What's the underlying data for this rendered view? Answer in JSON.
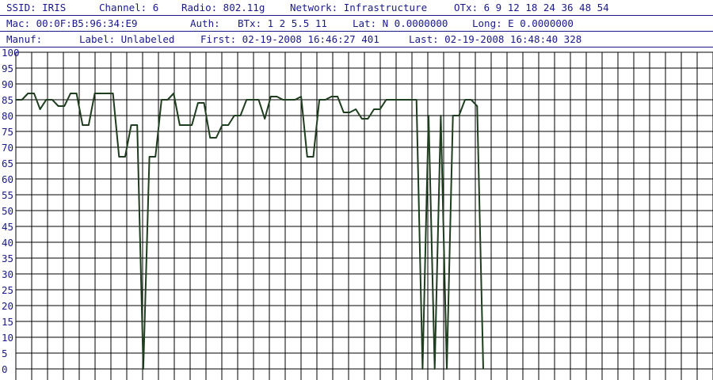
{
  "info": {
    "row1": {
      "ssid": "SSID: IRIS",
      "channel": "Channel: 6",
      "radio": "Radio: 802.11g",
      "network": "Network: Infrastructure",
      "otx": "OTx: 6 9 12 18 24 36 48 54"
    },
    "row2": {
      "mac": "Mac: 00:0F:B5:96:34:E9",
      "auth": "Auth:",
      "btx": "BTx: 1 2 5.5 11",
      "lat": "Lat: N 0.0000000",
      "long": "Long: E 0.0000000"
    },
    "row3": {
      "manuf": "Manuf:",
      "label": "Label: Unlabeled",
      "first": "First: 02-19-2008 16:46:27 401",
      "last": "Last: 02-19-2008 16:48:40 328"
    }
  },
  "colors": {
    "text": "#1a1a8c",
    "grid": "#000000",
    "signal_line": "#1f3d1f",
    "background": "#ffffff"
  },
  "chart_data": {
    "type": "line",
    "title": "",
    "xlabel": "",
    "ylabel": "",
    "ylim": [
      0,
      100
    ],
    "yticks": [
      100,
      95,
      90,
      85,
      80,
      75,
      70,
      65,
      60,
      55,
      50,
      45,
      40,
      35,
      30,
      25,
      20,
      15,
      10,
      5,
      0
    ],
    "grid": true,
    "legend": "none",
    "series": [
      {
        "values": [
          85,
          85,
          87,
          87,
          82,
          85,
          85,
          83,
          83,
          87,
          87,
          77,
          77,
          87,
          87,
          87,
          87,
          67,
          67,
          77,
          77,
          0,
          67,
          67,
          85,
          85,
          87,
          77,
          77,
          77,
          84,
          84,
          73,
          73,
          77,
          77,
          80,
          80,
          85,
          85,
          85,
          79,
          86,
          86,
          85,
          85,
          85,
          86,
          67,
          67,
          85,
          85,
          86,
          86,
          81,
          81,
          82,
          79,
          79,
          82,
          82,
          85,
          85,
          85,
          85,
          85,
          85,
          0,
          80,
          0,
          80,
          0,
          80,
          80,
          85,
          85,
          83,
          0
        ]
      }
    ]
  }
}
